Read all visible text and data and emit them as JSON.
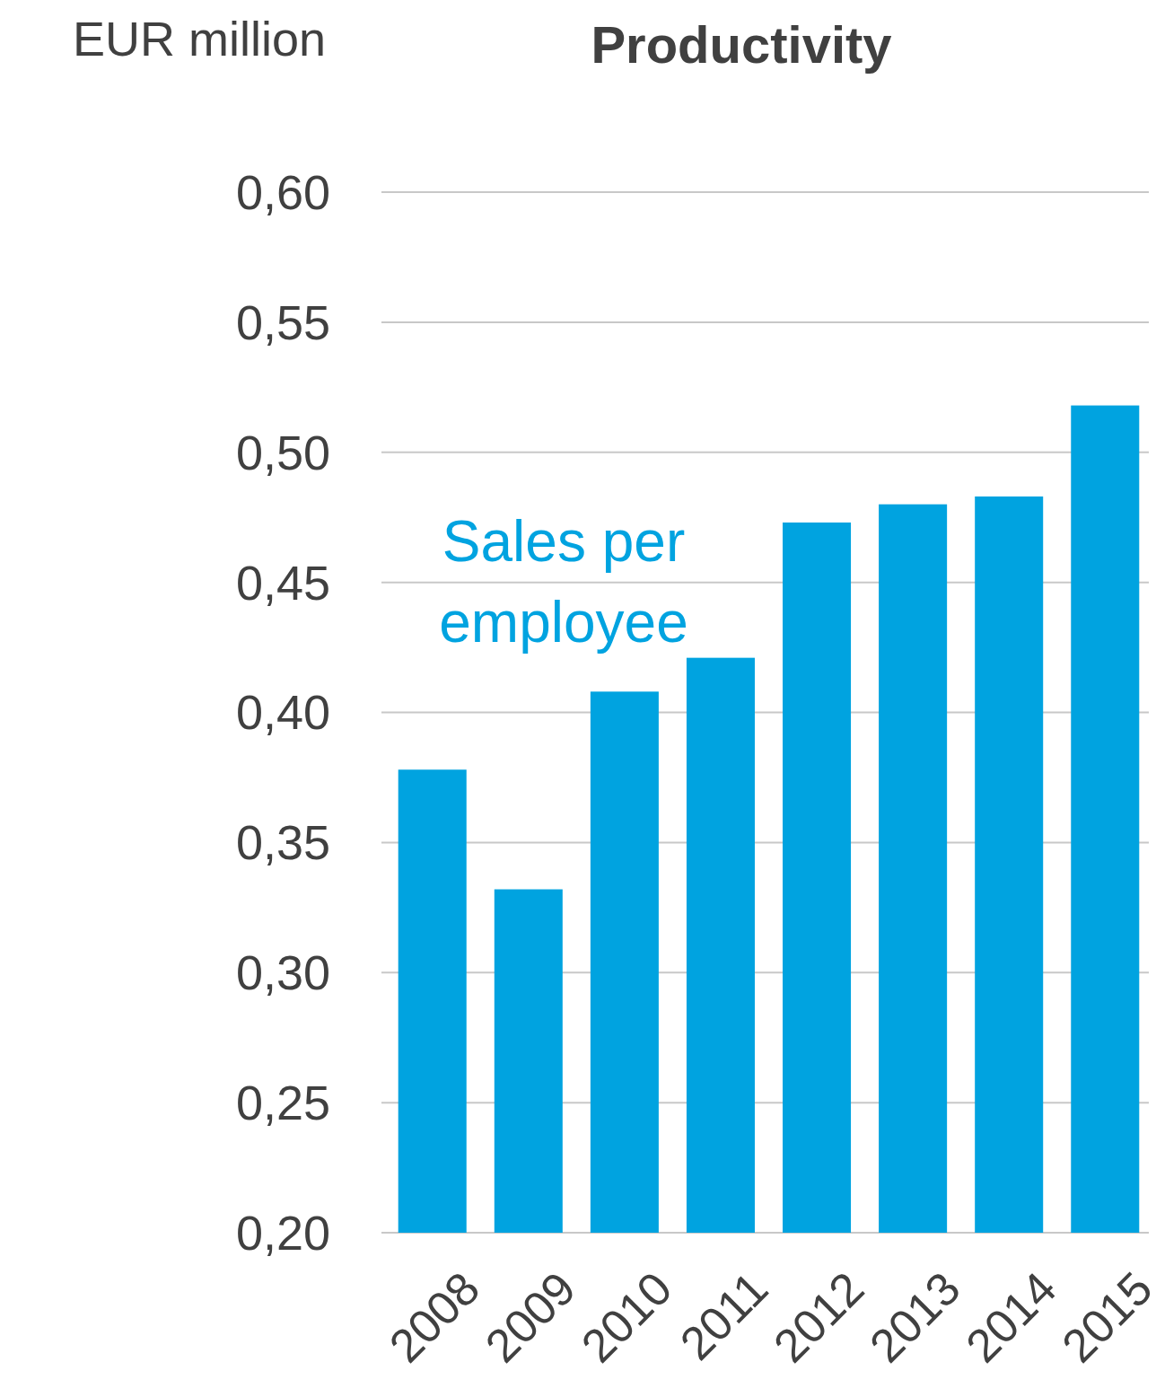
{
  "chart_data": {
    "type": "bar",
    "title": "Productivity",
    "ylabel": "EUR million",
    "categories": [
      "2008",
      "2009",
      "2010",
      "2011",
      "2012",
      "2013",
      "2014",
      "2015"
    ],
    "series": [
      {
        "name": "Sales per employee",
        "color": "#00a3e0",
        "values": [
          0.378,
          0.332,
          0.408,
          0.421,
          0.473,
          0.48,
          0.483,
          0.518
        ]
      }
    ],
    "ylim": [
      0.2,
      0.6
    ],
    "yticks": [
      {
        "value": 0.2,
        "label": "0,20"
      },
      {
        "value": 0.25,
        "label": "0,25"
      },
      {
        "value": 0.3,
        "label": "0,30"
      },
      {
        "value": 0.35,
        "label": "0,35"
      },
      {
        "value": 0.4,
        "label": "0,40"
      },
      {
        "value": 0.45,
        "label": "0,45"
      },
      {
        "value": 0.5,
        "label": "0,50"
      },
      {
        "value": 0.55,
        "label": "0,55"
      },
      {
        "value": 0.6,
        "label": "0,60"
      }
    ],
    "grid": "y"
  }
}
